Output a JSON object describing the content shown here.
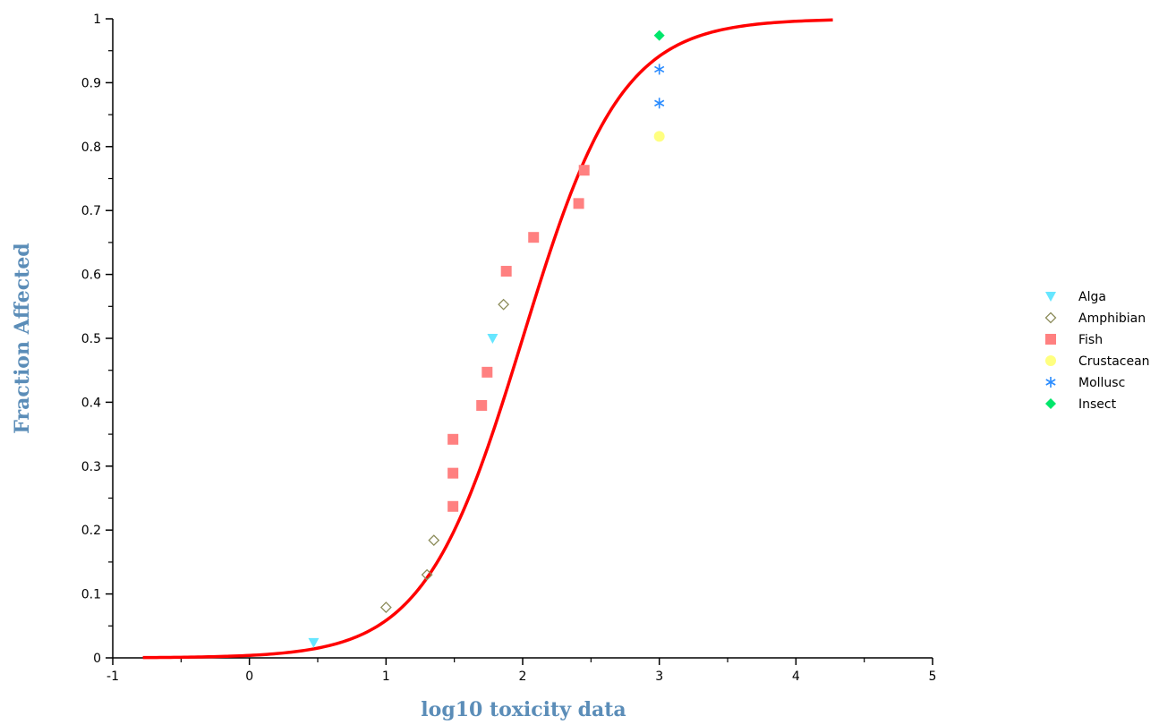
{
  "chart_data": {
    "type": "scatter",
    "xlabel": "log10 toxicity data",
    "ylabel": "Fraction Affected",
    "xlim": [
      -1,
      5
    ],
    "ylim": [
      0,
      1
    ],
    "x_ticks": [
      "-1",
      "0",
      "1",
      "2",
      "3",
      "4",
      "5"
    ],
    "y_ticks": [
      "0",
      "0.1",
      "0.2",
      "0.3",
      "0.4",
      "0.5",
      "0.6",
      "0.7",
      "0.8",
      "0.9",
      "1"
    ],
    "grid": false,
    "legend_position": "right",
    "axis_title_color": "#5b8db8",
    "fit_curve": {
      "color": "#ff0000",
      "x_range": [
        -0.78,
        4.27
      ],
      "center": 2.0,
      "scale": 0.36
    },
    "series": [
      {
        "name": "Alga",
        "marker": "triangle-down",
        "color": "#66e6ff",
        "points": [
          [
            0.47,
            0.024
          ],
          [
            1.78,
            0.5
          ]
        ]
      },
      {
        "name": "Amphibian",
        "marker": "diamond-open",
        "color": "#8c8c5a",
        "points": [
          [
            1.0,
            0.079
          ],
          [
            1.3,
            0.13
          ],
          [
            1.35,
            0.184
          ],
          [
            1.86,
            0.553
          ]
        ]
      },
      {
        "name": "Fish",
        "marker": "square",
        "color": "#ff8080",
        "points": [
          [
            1.49,
            0.237
          ],
          [
            1.49,
            0.289
          ],
          [
            1.49,
            0.342
          ],
          [
            1.7,
            0.395
          ],
          [
            1.74,
            0.447
          ],
          [
            1.88,
            0.605
          ],
          [
            2.08,
            0.658
          ],
          [
            2.41,
            0.711
          ],
          [
            2.45,
            0.763
          ]
        ]
      },
      {
        "name": "Crustacean",
        "marker": "circle",
        "color": "#ffff80",
        "points": [
          [
            3.0,
            0.816
          ]
        ]
      },
      {
        "name": "Mollusc",
        "marker": "asterisk",
        "color": "#2b8cff",
        "points": [
          [
            3.0,
            0.868
          ],
          [
            3.0,
            0.921
          ]
        ]
      },
      {
        "name": "Insect",
        "marker": "diamond",
        "color": "#00e66b",
        "points": [
          [
            3.0,
            0.974
          ]
        ]
      }
    ]
  }
}
